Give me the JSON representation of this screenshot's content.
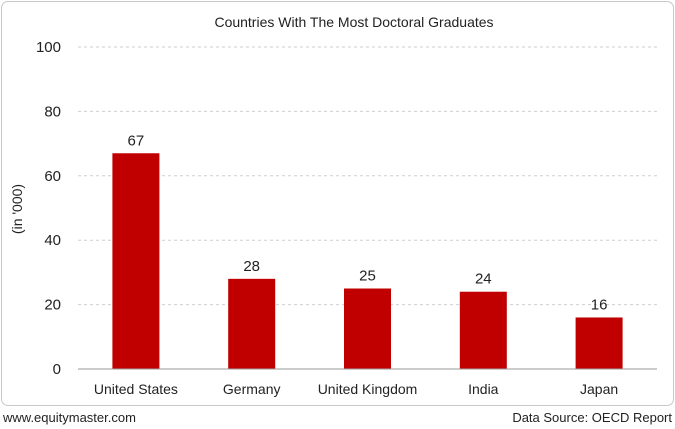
{
  "chart_data": {
    "type": "bar",
    "title": "Countries With The Most Doctoral Graduates",
    "xlabel": "",
    "ylabel": "(in '000)",
    "categories": [
      "United States",
      "Germany",
      "United Kingdom",
      "India",
      "Japan"
    ],
    "values": [
      67,
      28,
      25,
      24,
      16
    ],
    "value_labels": [
      "67",
      "28",
      "25",
      "24",
      "16"
    ],
    "ylim": [
      0,
      100
    ],
    "yticks": [
      0,
      20,
      40,
      60,
      80,
      100
    ],
    "ytick_labels": [
      "0",
      "20",
      "40",
      "60",
      "80",
      "100"
    ],
    "grid": true,
    "bar_color": "#c00000",
    "grid_color": "#cfcfcf"
  },
  "footer": {
    "left": "www.equitymaster.com",
    "right": "Data Source: OECD Report"
  }
}
